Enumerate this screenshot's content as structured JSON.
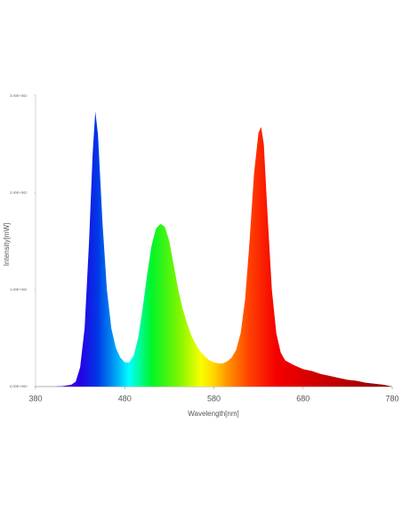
{
  "chart_data": {
    "type": "area",
    "x_label": "Wavelength[nm]",
    "y_label": "Intensity[mW]",
    "xlim": [
      380,
      780
    ],
    "xticks": [
      380,
      480,
      580,
      680,
      780
    ],
    "ylim": [
      0,
      300
    ],
    "yticks": [
      {
        "value": 0,
        "label": "0.00E+000"
      },
      {
        "value": 100,
        "label": "1.00E+002"
      },
      {
        "value": 200,
        "label": "2.00E+002"
      },
      {
        "value": 300,
        "label": "3.00E+002"
      }
    ],
    "x": [
      400,
      410,
      420,
      425,
      430,
      435,
      440,
      444,
      447,
      450,
      455,
      460,
      465,
      470,
      475,
      480,
      485,
      490,
      495,
      500,
      505,
      510,
      515,
      520,
      525,
      530,
      535,
      540,
      545,
      550,
      555,
      560,
      565,
      570,
      575,
      580,
      585,
      590,
      595,
      600,
      605,
      610,
      615,
      620,
      625,
      630,
      633,
      636,
      640,
      645,
      650,
      655,
      660,
      670,
      680,
      690,
      700,
      710,
      720,
      730,
      740,
      750,
      760,
      770,
      780
    ],
    "values": [
      0,
      0.5,
      2,
      5,
      20,
      60,
      150,
      240,
      284,
      260,
      170,
      100,
      60,
      40,
      30,
      25,
      25,
      32,
      50,
      80,
      115,
      145,
      163,
      168,
      165,
      150,
      125,
      100,
      80,
      65,
      52,
      43,
      36,
      31,
      27,
      25,
      24,
      24,
      26,
      30,
      38,
      55,
      90,
      150,
      220,
      262,
      268,
      250,
      180,
      100,
      55,
      35,
      27,
      22,
      18,
      16,
      13,
      11,
      9,
      7,
      6,
      4,
      3,
      2,
      0
    ]
  }
}
